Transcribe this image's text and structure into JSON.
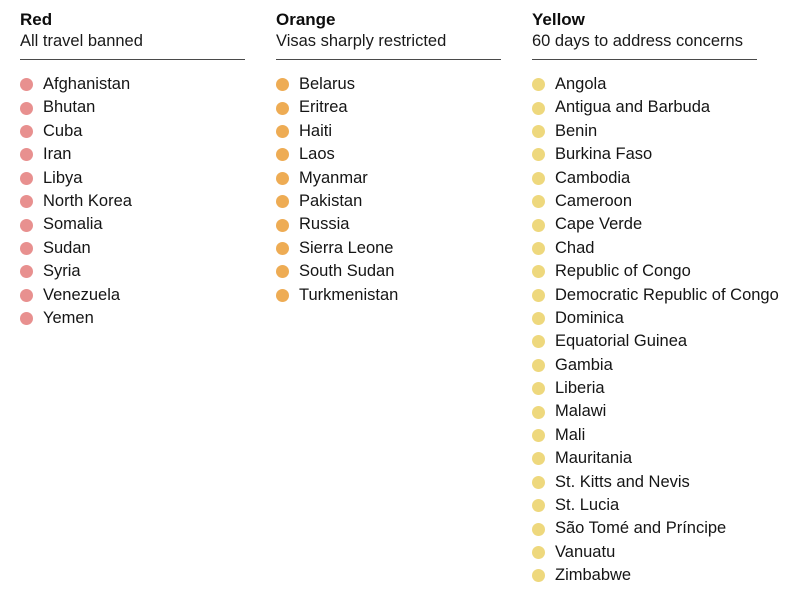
{
  "chart_data": {
    "type": "table",
    "layout": "three-column categorized list with colored status dots",
    "groups": [
      {
        "label": "Red",
        "sublabel": "All travel banned",
        "dot_color": "#e8908f",
        "countries": [
          "Afghanistan",
          "Bhutan",
          "Cuba",
          "Iran",
          "Libya",
          "North Korea",
          "Somalia",
          "Sudan",
          "Syria",
          "Venezuela",
          "Yemen"
        ]
      },
      {
        "label": "Orange",
        "sublabel": "Visas sharply restricted",
        "dot_color": "#eeac54",
        "countries": [
          "Belarus",
          "Eritrea",
          "Haiti",
          "Laos",
          "Myanmar",
          "Pakistan",
          "Russia",
          "Sierra Leone",
          "South Sudan",
          "Turkmenistan"
        ]
      },
      {
        "label": "Yellow",
        "sublabel": "60 days to address concerns",
        "dot_color": "#eed87d",
        "countries": [
          "Angola",
          "Antigua and Barbuda",
          "Benin",
          "Burkina Faso",
          "Cambodia",
          "Cameroon",
          "Cape Verde",
          "Chad",
          "Republic of Congo",
          "Democratic Republic of Congo",
          "Dominica",
          "Equatorial Guinea",
          "Gambia",
          "Liberia",
          "Malawi",
          "Mali",
          "Mauritania",
          "St. Kitts and Nevis",
          "St. Lucia",
          "São Tomé and Príncipe",
          "Vanuatu",
          "Zimbabwe"
        ]
      }
    ]
  },
  "style": {
    "background": "#ffffff",
    "text_color": "#151515",
    "divider_color": "#4a4a4a"
  }
}
